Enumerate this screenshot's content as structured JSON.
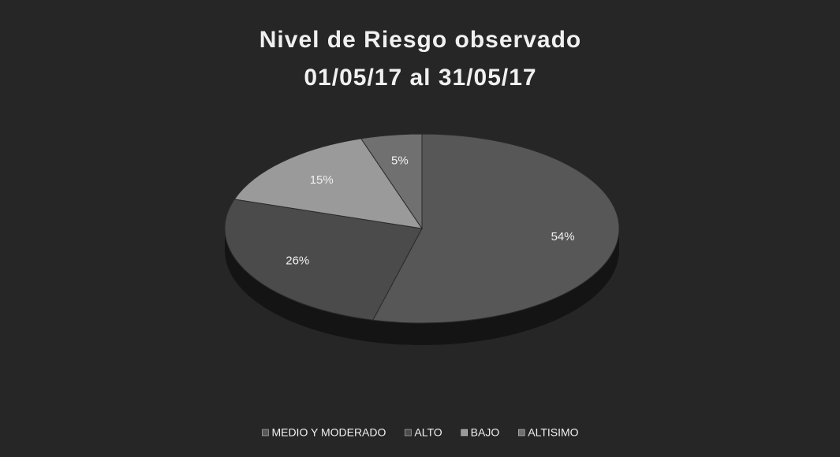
{
  "chart_data": {
    "type": "pie",
    "title": "Nivel de Riesgo observado",
    "subtitle": "01/05/17 al 31/05/17",
    "categories": [
      "MEDIO Y MODERADO",
      "ALTO",
      "BAJO",
      "ALTISIMO"
    ],
    "values": [
      54,
      26,
      15,
      5
    ],
    "value_labels": [
      "54%",
      "26%",
      "15%",
      "5%"
    ],
    "colors": [
      "#575757",
      "#4b4b4b",
      "#9a9a9a",
      "#707070"
    ],
    "legend": "bottom"
  }
}
